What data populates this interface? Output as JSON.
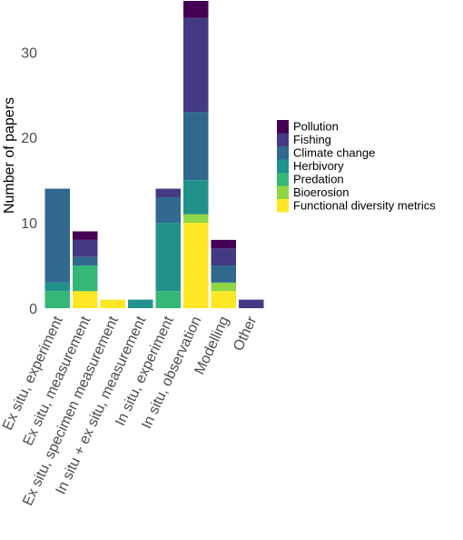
{
  "chart_data": {
    "type": "bar",
    "stacked": true,
    "title": "",
    "xlabel": "",
    "ylabel": "Number of papers",
    "ylim": [
      0,
      36
    ],
    "yticks": [
      0,
      10,
      20,
      30
    ],
    "grid": false,
    "legend_position": "right",
    "categories": [
      "Ex situ, experiment",
      "Ex situ, measurement",
      "Ex situ, specimen measurement",
      "In situ + ex situ, measurement",
      "In situ, experiment",
      "In situ, observation",
      "Modelling",
      "Other"
    ],
    "series": [
      {
        "name": "Functional diversity metrics",
        "color": "#fde725",
        "values": [
          0,
          2,
          1,
          0,
          0,
          10,
          2,
          0
        ]
      },
      {
        "name": "Bioerosion",
        "color": "#8fd744",
        "values": [
          0,
          0,
          0,
          0,
          0,
          1,
          1,
          0
        ]
      },
      {
        "name": "Predation",
        "color": "#35b779",
        "values": [
          2,
          3,
          0,
          0,
          2,
          0,
          0,
          0
        ]
      },
      {
        "name": "Herbivory",
        "color": "#21918c",
        "values": [
          1,
          0,
          0,
          1,
          8,
          4,
          0,
          0
        ]
      },
      {
        "name": "Climate change",
        "color": "#31688e",
        "values": [
          11,
          1,
          0,
          0,
          3,
          8,
          2,
          0
        ]
      },
      {
        "name": "Fishing",
        "color": "#443a83",
        "values": [
          0,
          2,
          0,
          0,
          1,
          11,
          2,
          1
        ]
      },
      {
        "name": "Pollution",
        "color": "#440154",
        "values": [
          0,
          1,
          0,
          0,
          0,
          2,
          1,
          0
        ]
      }
    ],
    "legend_order": [
      "Pollution",
      "Fishing",
      "Climate change",
      "Herbivory",
      "Predation",
      "Bioerosion",
      "Functional diversity metrics"
    ]
  }
}
